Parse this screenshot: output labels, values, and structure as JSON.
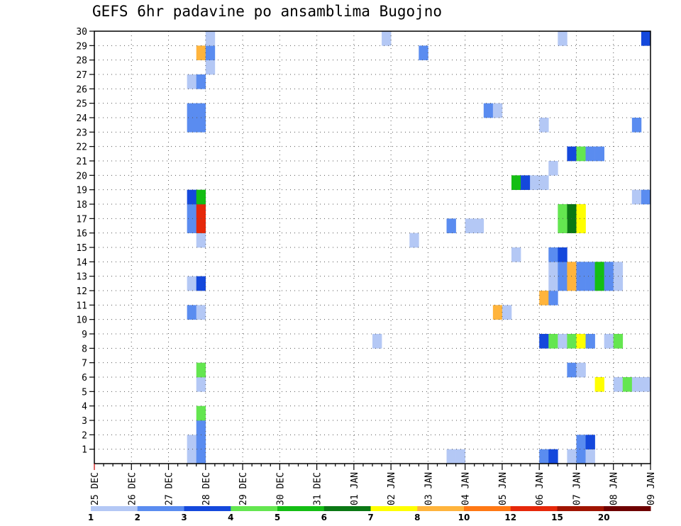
{
  "chart_data": {
    "type": "heatmap",
    "title": "GEFS 6hr padavine po ansamblima Bugojno",
    "xlabel": "",
    "ylabel": "",
    "x_start": "2025-12-25T00",
    "step_hours": 6,
    "x_ticks": [
      "25 DEC",
      "26 DEC",
      "27 DEC",
      "28 DEC",
      "29 DEC",
      "30 DEC",
      "31 DEC",
      "01 JAN",
      "02 JAN",
      "03 JAN",
      "04 JAN",
      "05 JAN",
      "06 JAN",
      "07 JAN",
      "08 JAN",
      "09 JAN"
    ],
    "y_ticks": [
      "1",
      "2",
      "3",
      "4",
      "5",
      "6",
      "7",
      "8",
      "9",
      "10",
      "11",
      "12",
      "13",
      "14",
      "15",
      "16",
      "17",
      "18",
      "19",
      "20",
      "21",
      "22",
      "23",
      "24",
      "25",
      "26",
      "27",
      "28",
      "29",
      "30"
    ],
    "ylim": [
      0,
      30
    ],
    "grid": true,
    "legend_position": "bottom",
    "color_scale": {
      "labels": [
        "1",
        "2",
        "3",
        "4",
        "5",
        "6",
        "7",
        "8",
        "10",
        "12",
        "15",
        "20"
      ],
      "colors": [
        "#b4c8f5",
        "#5a8cf0",
        "#1448dc",
        "#64e650",
        "#14be14",
        "#0a7814",
        "#ffff00",
        "#ffb43c",
        "#ff7814",
        "#e6280a",
        "#a01400",
        "#6e0000"
      ]
    },
    "cells": [
      [
        "2025-12-27T12",
        0,
        "#b4c8f5"
      ],
      [
        "2025-12-27T18",
        0,
        "#5a8cf0"
      ],
      [
        "2025-12-27T12",
        1,
        "#b4c8f5"
      ],
      [
        "2025-12-27T18",
        1,
        "#5a8cf0"
      ],
      [
        "2025-12-27T18",
        2,
        "#5a8cf0"
      ],
      [
        "2025-12-27T18",
        3,
        "#64e650"
      ],
      [
        "2025-12-27T18",
        5,
        "#b4c8f5"
      ],
      [
        "2025-12-27T18",
        6,
        "#64e650"
      ],
      [
        "2025-12-27T12",
        10,
        "#5a8cf0"
      ],
      [
        "2025-12-27T18",
        10,
        "#b4c8f5"
      ],
      [
        "2025-12-27T12",
        12,
        "#b4c8f5"
      ],
      [
        "2025-12-27T18",
        12,
        "#1448dc"
      ],
      [
        "2025-12-27T18",
        15,
        "#b4c8f5"
      ],
      [
        "2025-12-27T12",
        16,
        "#5a8cf0"
      ],
      [
        "2025-12-27T18",
        16,
        "#e6280a"
      ],
      [
        "2025-12-27T12",
        17,
        "#5a8cf0"
      ],
      [
        "2025-12-27T18",
        17,
        "#e6280a"
      ],
      [
        "2025-12-27T12",
        18,
        "#1448dc"
      ],
      [
        "2025-12-27T18",
        18,
        "#14be14"
      ],
      [
        "2025-12-27T12",
        23,
        "#5a8cf0"
      ],
      [
        "2025-12-27T18",
        23,
        "#5a8cf0"
      ],
      [
        "2025-12-27T12",
        24,
        "#5a8cf0"
      ],
      [
        "2025-12-27T18",
        24,
        "#5a8cf0"
      ],
      [
        "2025-12-27T12",
        26,
        "#b4c8f5"
      ],
      [
        "2025-12-27T18",
        26,
        "#5a8cf0"
      ],
      [
        "2025-12-28T00",
        27,
        "#b4c8f5"
      ],
      [
        "2025-12-27T18",
        28,
        "#ffb43c"
      ],
      [
        "2025-12-28T00",
        28,
        "#5a8cf0"
      ],
      [
        "2025-12-28T00",
        29,
        "#b4c8f5"
      ],
      [
        "2026-01-01T12",
        8,
        "#b4c8f5"
      ],
      [
        "2026-01-01T18",
        29,
        "#b4c8f5"
      ],
      [
        "2026-01-02T12",
        15,
        "#b4c8f5"
      ],
      [
        "2026-01-02T18",
        28,
        "#5a8cf0"
      ],
      [
        "2026-01-03T12",
        0,
        "#b4c8f5"
      ],
      [
        "2026-01-03T18",
        0,
        "#b4c8f5"
      ],
      [
        "2026-01-03T12",
        16,
        "#5a8cf0"
      ],
      [
        "2026-01-04T00",
        16,
        "#b4c8f5"
      ],
      [
        "2026-01-04T06",
        16,
        "#b4c8f5"
      ],
      [
        "2026-01-04T12",
        24,
        "#5a8cf0"
      ],
      [
        "2026-01-04T18",
        24,
        "#b4c8f5"
      ],
      [
        "2026-01-04T18",
        10,
        "#ffb43c"
      ],
      [
        "2026-01-05T00",
        10,
        "#b4c8f5"
      ],
      [
        "2026-01-05T06",
        14,
        "#b4c8f5"
      ],
      [
        "2026-01-05T06",
        19,
        "#14be14"
      ],
      [
        "2026-01-05T12",
        19,
        "#1448dc"
      ],
      [
        "2026-01-05T18",
        19,
        "#b4c8f5"
      ],
      [
        "2026-01-06T00",
        19,
        "#b4c8f5"
      ],
      [
        "2026-01-06T06",
        20,
        "#b4c8f5"
      ],
      [
        "2026-01-06T00",
        23,
        "#b4c8f5"
      ],
      [
        "2026-01-06T00",
        0,
        "#5a8cf0"
      ],
      [
        "2026-01-06T06",
        0,
        "#1448dc"
      ],
      [
        "2026-01-06T00",
        8,
        "#1448dc"
      ],
      [
        "2026-01-06T06",
        8,
        "#64e650"
      ],
      [
        "2026-01-06T12",
        8,
        "#b4c8f5"
      ],
      [
        "2026-01-06T00",
        11,
        "#ffb43c"
      ],
      [
        "2026-01-06T06",
        11,
        "#5a8cf0"
      ],
      [
        "2026-01-06T06",
        12,
        "#b4c8f5"
      ],
      [
        "2026-01-06T12",
        12,
        "#5a8cf0"
      ],
      [
        "2026-01-06T18",
        12,
        "#ffb43c"
      ],
      [
        "2026-01-07T00",
        12,
        "#5a8cf0"
      ],
      [
        "2026-01-07T06",
        12,
        "#5a8cf0"
      ],
      [
        "2026-01-07T12",
        12,
        "#14be14"
      ],
      [
        "2026-01-07T18",
        12,
        "#5a8cf0"
      ],
      [
        "2026-01-08T00",
        12,
        "#b4c8f5"
      ],
      [
        "2026-01-06T06",
        13,
        "#b4c8f5"
      ],
      [
        "2026-01-06T12",
        13,
        "#5a8cf0"
      ],
      [
        "2026-01-06T18",
        13,
        "#ffb43c"
      ],
      [
        "2026-01-07T00",
        13,
        "#5a8cf0"
      ],
      [
        "2026-01-07T06",
        13,
        "#5a8cf0"
      ],
      [
        "2026-01-07T12",
        13,
        "#14be14"
      ],
      [
        "2026-01-07T18",
        13,
        "#5a8cf0"
      ],
      [
        "2026-01-08T00",
        13,
        "#b4c8f5"
      ],
      [
        "2026-01-06T06",
        14,
        "#5a8cf0"
      ],
      [
        "2026-01-06T12",
        14,
        "#1448dc"
      ],
      [
        "2026-01-06T18",
        0,
        "#b4c8f5"
      ],
      [
        "2026-01-07T00",
        0,
        "#5a8cf0"
      ],
      [
        "2026-01-07T06",
        0,
        "#b4c8f5"
      ],
      [
        "2026-01-07T00",
        1,
        "#5a8cf0"
      ],
      [
        "2026-01-07T06",
        1,
        "#1448dc"
      ],
      [
        "2026-01-06T18",
        6,
        "#5a8cf0"
      ],
      [
        "2026-01-07T00",
        6,
        "#b4c8f5"
      ],
      [
        "2026-01-06T18",
        8,
        "#64e650"
      ],
      [
        "2026-01-07T00",
        8,
        "#ffff00"
      ],
      [
        "2026-01-07T06",
        8,
        "#5a8cf0"
      ],
      [
        "2026-01-07T18",
        8,
        "#b4c8f5"
      ],
      [
        "2026-01-08T00",
        8,
        "#64e650"
      ],
      [
        "2026-01-06T18",
        16,
        "#0a7814"
      ],
      [
        "2026-01-06T12",
        16,
        "#64e650"
      ],
      [
        "2026-01-07T00",
        16,
        "#ffff00"
      ],
      [
        "2026-01-06T12",
        17,
        "#64e650"
      ],
      [
        "2026-01-06T18",
        17,
        "#0a7814"
      ],
      [
        "2026-01-07T00",
        17,
        "#ffff00"
      ],
      [
        "2026-01-06T18",
        21,
        "#1448dc"
      ],
      [
        "2026-01-07T00",
        21,
        "#64e650"
      ],
      [
        "2026-01-07T06",
        21,
        "#5a8cf0"
      ],
      [
        "2026-01-07T12",
        21,
        "#5a8cf0"
      ],
      [
        "2026-01-06T12",
        29,
        "#b4c8f5"
      ],
      [
        "2026-01-07T12",
        5,
        "#ffff00"
      ],
      [
        "2026-01-08T00",
        5,
        "#b4c8f5"
      ],
      [
        "2026-01-08T06",
        5,
        "#64e650"
      ],
      [
        "2026-01-08T12",
        5,
        "#b4c8f5"
      ],
      [
        "2026-01-08T18",
        5,
        "#b4c8f5"
      ],
      [
        "2026-01-08T12",
        18,
        "#b4c8f5"
      ],
      [
        "2026-01-08T18",
        18,
        "#5a8cf0"
      ],
      [
        "2026-01-08T12",
        23,
        "#5a8cf0"
      ],
      [
        "2026-01-08T18",
        29,
        "#1448dc"
      ]
    ]
  }
}
